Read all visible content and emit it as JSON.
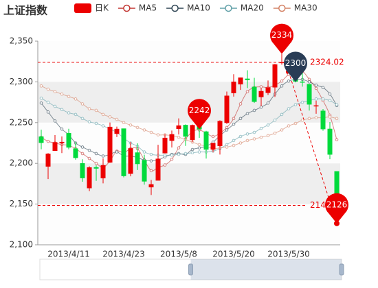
{
  "chart_data": {
    "type": "candlestick",
    "title": "上证指数",
    "categories": [
      null,
      null,
      null,
      null,
      "2013/4/11",
      null,
      null,
      null,
      null,
      null,
      null,
      null,
      "2013/4/23",
      null,
      null,
      null,
      null,
      null,
      null,
      null,
      "2013/5/8",
      null,
      null,
      null,
      null,
      null,
      null,
      null,
      "2013/5/20",
      null,
      null,
      null,
      null,
      null,
      null,
      null,
      "2013/5/30",
      null,
      null,
      null,
      null,
      null,
      null,
      null
    ],
    "series": [
      {
        "name": "日K",
        "up_color": "#ec0000",
        "down_color": "#00da3c",
        "values": [
          [
            2232.69,
            2225.29,
            2217.25,
            2241.34
          ],
          [
            2196.24,
            2211.59,
            2180.67,
            2212.59
          ],
          [
            2215.47,
            2225.77,
            2215.47,
            2234.73
          ],
          [
            2224.93,
            2226.13,
            2212.56,
            2233.04
          ],
          [
            2236.98,
            2219.55,
            2217.26,
            2242.48
          ],
          [
            2218.09,
            2206.78,
            2204.44,
            2226.26
          ],
          [
            2199.91,
            2181.94,
            2177.39,
            2204.99
          ],
          [
            2169.63,
            2194.85,
            2165.78,
            2196.43
          ],
          [
            2195.03,
            2193.8,
            2178.47,
            2197.51
          ],
          [
            2181.82,
            2197.6,
            2175.44,
            2206.03
          ],
          [
            2201.12,
            2244.64,
            2200.58,
            2250.11
          ],
          [
            2236.4,
            2242.17,
            2232.26,
            2245.12
          ],
          [
            2242.62,
            2184.54,
            2182.81,
            2242.62
          ],
          [
            2187.35,
            2218.32,
            2184.11,
            2226.12
          ],
          [
            2213.19,
            2199.31,
            2191.85,
            2224.63
          ],
          [
            2203.89,
            2177.91,
            2173.86,
            2210.58
          ],
          [
            2170.78,
            2174.12,
            2161.14,
            2179.65
          ],
          [
            2179.05,
            2205.5,
            2179.05,
            2222.81
          ],
          [
            2212.5,
            2231.17,
            2212.5,
            2236.07
          ],
          [
            2227.86,
            2235.57,
            2219.44,
            2240.26
          ],
          [
            2242.39,
            2246.3,
            2235.42,
            2255.21
          ],
          [
            2246.96,
            2232.97,
            2221.38,
            2247.86
          ],
          [
            2228.82,
            2246.83,
            2225.81,
            2247.67
          ],
          [
            2247.68,
            2241.92,
            2231.36,
            2250.85
          ],
          [
            2238.9,
            2217.01,
            2205.87,
            2239.93
          ],
          [
            2217.09,
            2224.8,
            2213.58,
            2225.19
          ],
          [
            2221.34,
            2251.81,
            2210.77,
            2252.87
          ],
          [
            2249.81,
            2282.87,
            2248.41,
            2288.09
          ],
          [
            2286.33,
            2299.99,
            2281.9,
            2309.39
          ],
          [
            2297.11,
            2305.11,
            2290.12,
            2305.3
          ],
          [
            2303.75,
            2302.4,
            2292.43,
            2314.18
          ],
          [
            2293.81,
            2275.67,
            2274.1,
            2304.95
          ],
          [
            2281.45,
            2288.53,
            2270.25,
            2292.59
          ],
          [
            2286.66,
            2293.08,
            2283.94,
            2301.7
          ],
          [
            2293.4,
            2321.32,
            2281.47,
            2322.1
          ],
          [
            2323.54,
            2324.02,
            2321.17,
            2334.33
          ],
          [
            2316.25,
            2317.75,
            2310.49,
            2325.72
          ],
          [
            2320.74,
            2300.59,
            2299.37,
            2325.53
          ],
          [
            2300.21,
            2299.25,
            2294.11,
            2313.43
          ],
          [
            2297.1,
            2272.42,
            2264.76,
            2297.1
          ],
          [
            2270.71,
            2270.93,
            2260.87,
            2276.86
          ],
          [
            2264.43,
            2242.11,
            2240.07,
            2266.69
          ],
          [
            2242.26,
            2210.9,
            2205.07,
            2250.63
          ],
          [
            2190.1,
            2148.35,
            2126.22,
            2190.1
          ]
        ]
      },
      {
        "name": "MA5",
        "type": "line",
        "color": "#c23531",
        "values": [
          2232,
          2227,
          2225,
          2223,
          2222,
          2218,
          2212,
          2206,
          2200,
          2195,
          2203,
          2215,
          2213,
          2218,
          2218,
          2204,
          2191,
          2195,
          2198,
          2205,
          2219,
          2230,
          2239,
          2241,
          2237,
          2233,
          2237,
          2244,
          2255,
          2273,
          2288,
          2293,
          2294,
          2293,
          2296,
          2301,
          2309,
          2311,
          2313,
          2303,
          2292,
          2277,
          2259,
          2229
        ]
      },
      {
        "name": "MA10",
        "type": "line",
        "color": "#2f4554",
        "values": [
          2274,
          2263,
          2252,
          2242,
          2235,
          2225,
          2220,
          2216,
          2212,
          2209,
          2211,
          2214,
          2209,
          2209,
          2207,
          2204,
          2203,
          2204,
          2208,
          2211,
          2212,
          2211,
          2217,
          2219,
          2221,
          2226,
          2234,
          2241,
          2248,
          2255,
          2261,
          2265,
          2269,
          2274,
          2285,
          2295,
          2301,
          2303,
          2303,
          2300,
          2296,
          2293,
          2285,
          2271
        ]
      },
      {
        "name": "MA20",
        "type": "line",
        "color": "#61a0a8",
        "values": [
          2280,
          2275,
          2270,
          2266,
          2262,
          2260,
          2255,
          2251,
          2249,
          2246,
          2242,
          2238,
          2231,
          2225,
          2221,
          2214,
          2211,
          2210,
          2210,
          2210,
          2211,
          2212,
          2213,
          2214,
          2214,
          2215,
          2218,
          2223,
          2228,
          2233,
          2236,
          2238,
          2243,
          2247,
          2253,
          2260,
          2267,
          2272,
          2275,
          2277,
          2279,
          2279,
          2277,
          2272
        ]
      },
      {
        "name": "MA30",
        "type": "line",
        "color": "#d48265",
        "values": [
          2295,
          2291,
          2288,
          2285,
          2282,
          2279,
          2273,
          2267,
          2265,
          2260,
          2257,
          2254,
          2250,
          2247,
          2244,
          2241,
          2238,
          2235,
          2235,
          2234,
          2232,
          2229,
          2226,
          2223,
          2221,
          2218,
          2219,
          2220,
          2222,
          2225,
          2228,
          2230,
          2232,
          2234,
          2237,
          2241,
          2246,
          2249,
          2253,
          2255,
          2256,
          2256,
          2257,
          2255
        ]
      }
    ],
    "ylim": [
      2100,
      2350
    ],
    "yticks": [
      {
        "value": 2100,
        "label": "2,100"
      },
      {
        "value": 2150,
        "label": "2,150"
      },
      {
        "value": 2200,
        "label": "2,200"
      },
      {
        "value": 2250,
        "label": "2,250"
      },
      {
        "value": 2300,
        "label": "2,300"
      },
      {
        "value": 2350,
        "label": "2,350"
      }
    ],
    "split_area": true,
    "mark_points": [
      {
        "label": "2334",
        "value": 2334.33,
        "at": 35,
        "color": "#ec0000"
      },
      {
        "value": 2300,
        "at": 37,
        "color": "#293c55"
      },
      {
        "value": 2242,
        "at": 23,
        "color": "#ec0000"
      },
      {
        "label": "2126",
        "value": 2126.22,
        "at": 43,
        "color": "#ec0000"
      }
    ],
    "mark_lines": [
      2324.02,
      2148.35
    ],
    "data_zoom": {
      "start": 50,
      "end": 100
    }
  }
}
